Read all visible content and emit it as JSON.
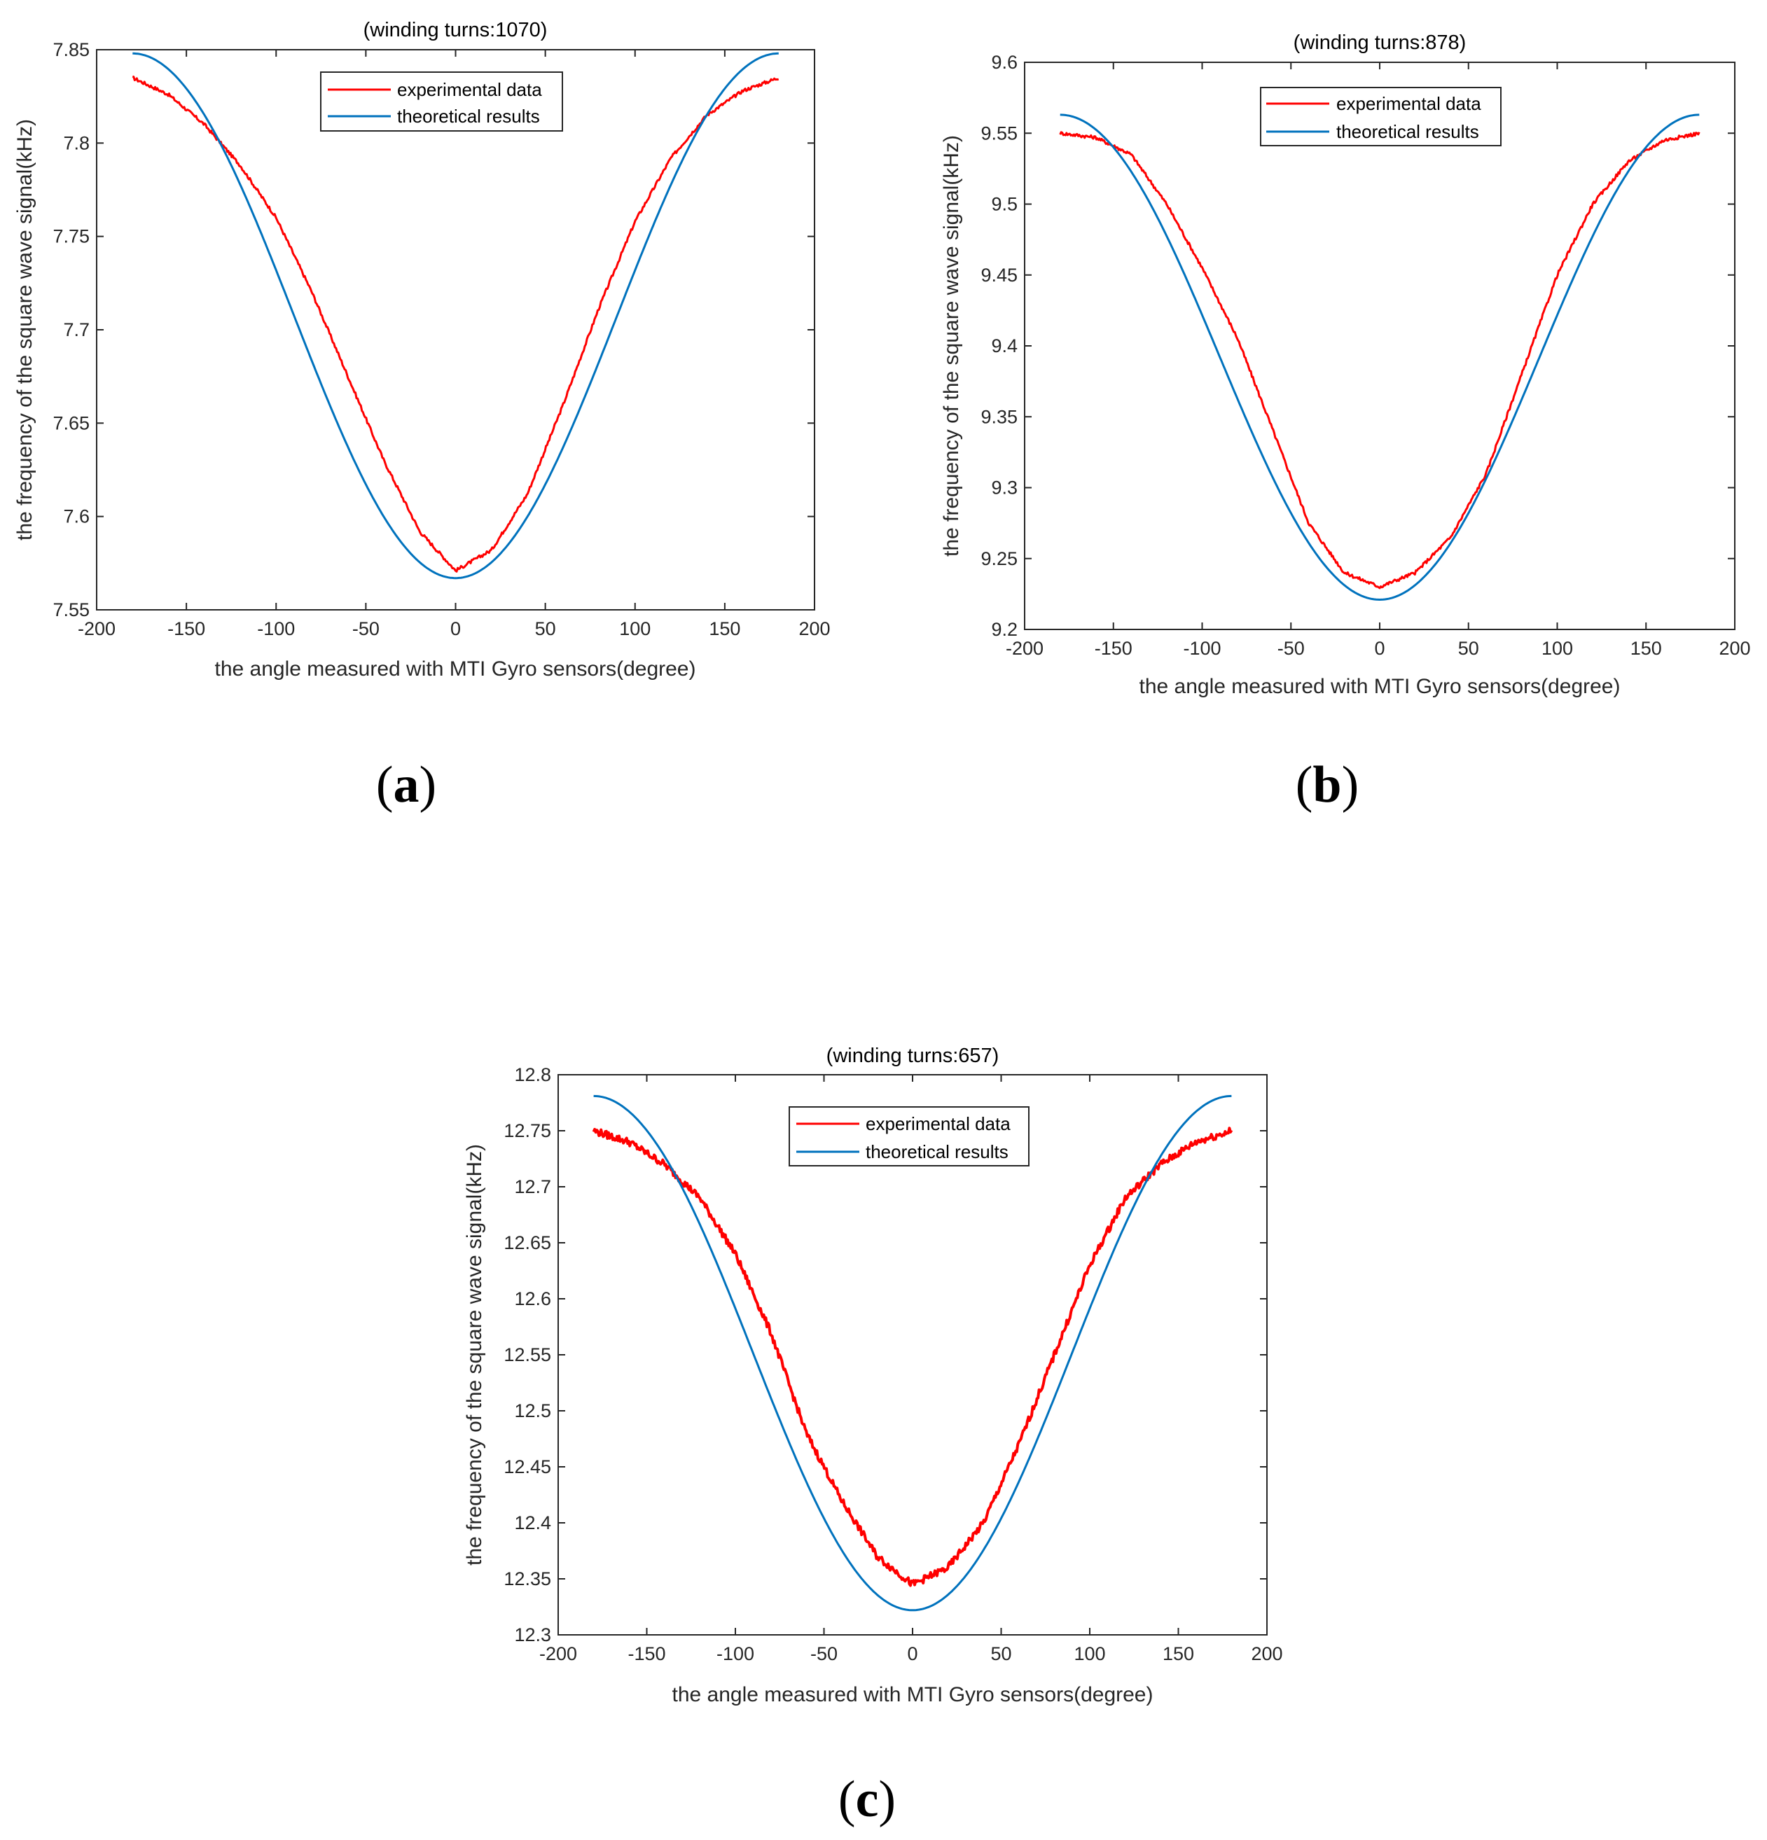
{
  "figure": {
    "panels": [
      {
        "id": "a",
        "caption_open": "(",
        "caption_letter": "a",
        "caption_close": ")"
      },
      {
        "id": "b",
        "caption_open": "(",
        "caption_letter": "b",
        "caption_close": ")"
      },
      {
        "id": "c",
        "caption_open": "(",
        "caption_letter": "c",
        "caption_close": ")"
      }
    ]
  },
  "colors": {
    "experimental": "#ff0000",
    "theoretical": "#0072bd",
    "axis": "#262626"
  },
  "chart_data": [
    {
      "type": "line",
      "title": "(winding turns:1070)",
      "xlabel": "the angle measured with MTI Gyro sensors(degree)",
      "ylabel": "the frequency of the square wave signal(kHz)",
      "xlim": [
        -200,
        200
      ],
      "ylim": [
        7.55,
        7.85
      ],
      "xticks": [
        -200,
        -150,
        -100,
        -50,
        0,
        50,
        100,
        150,
        200
      ],
      "yticks": [
        7.55,
        7.6,
        7.65,
        7.7,
        7.75,
        7.8,
        7.85
      ],
      "legend_position": "top-center",
      "series": [
        {
          "name": "experimental data",
          "color": "#ff0000",
          "x": [
            -180,
            -160,
            -140,
            -120,
            -100,
            -80,
            -60,
            -40,
            -20,
            0,
            20,
            40,
            60,
            80,
            100,
            120,
            140,
            160,
            180
          ],
          "y": [
            7.835,
            7.826,
            7.81,
            7.788,
            7.76,
            7.72,
            7.675,
            7.63,
            7.592,
            7.571,
            7.582,
            7.612,
            7.66,
            7.712,
            7.758,
            7.792,
            7.815,
            7.828,
            7.835
          ]
        },
        {
          "name": "theoretical results",
          "color": "#0072bd",
          "model": "cosine",
          "x": [
            -180,
            -150,
            -120,
            -90,
            -60,
            -30,
            0,
            30,
            60,
            90,
            120,
            150,
            180
          ],
          "y": [
            7.848,
            7.829,
            7.778,
            7.707,
            7.637,
            7.585,
            7.567,
            7.585,
            7.637,
            7.707,
            7.778,
            7.829,
            7.848
          ]
        }
      ]
    },
    {
      "type": "line",
      "title": "(winding turns:878)",
      "xlabel": "the angle measured with MTI Gyro sensors(degree)",
      "ylabel": "the frequency of the square wave signal(kHz)",
      "xlim": [
        -200,
        200
      ],
      "ylim": [
        9.2,
        9.6
      ],
      "xticks": [
        -200,
        -150,
        -100,
        -50,
        0,
        50,
        100,
        150,
        200
      ],
      "yticks": [
        9.2,
        9.25,
        9.3,
        9.35,
        9.4,
        9.45,
        9.5,
        9.55,
        9.6
      ],
      "legend_position": "top-center",
      "series": [
        {
          "name": "experimental data",
          "color": "#ff0000",
          "x": [
            -180,
            -160,
            -140,
            -120,
            -100,
            -80,
            -60,
            -40,
            -20,
            0,
            20,
            40,
            60,
            80,
            100,
            120,
            140,
            160,
            180
          ],
          "y": [
            9.55,
            9.547,
            9.535,
            9.5,
            9.455,
            9.405,
            9.34,
            9.275,
            9.24,
            9.23,
            9.24,
            9.265,
            9.31,
            9.38,
            9.45,
            9.5,
            9.53,
            9.545,
            9.55
          ]
        },
        {
          "name": "theoretical results",
          "color": "#0072bd",
          "model": "cosine",
          "x": [
            -180,
            -150,
            -120,
            -90,
            -60,
            -30,
            0,
            30,
            60,
            90,
            120,
            150,
            180
          ],
          "y": [
            9.563,
            9.539,
            9.482,
            9.392,
            9.301,
            9.233,
            9.221,
            9.233,
            9.301,
            9.392,
            9.482,
            9.539,
            9.563
          ]
        }
      ]
    },
    {
      "type": "line",
      "title": "(winding turns:657)",
      "xlabel": "the angle measured with MTI Gyro sensors(degree)",
      "ylabel": "the frequency of the square wave signal(kHz)",
      "xlim": [
        -200,
        200
      ],
      "ylim": [
        12.3,
        12.8
      ],
      "xticks": [
        -200,
        -150,
        -100,
        -50,
        0,
        50,
        100,
        150,
        200
      ],
      "yticks": [
        12.3,
        12.35,
        12.4,
        12.45,
        12.5,
        12.55,
        12.6,
        12.65,
        12.7,
        12.75,
        12.8
      ],
      "legend_position": "top-center",
      "series": [
        {
          "name": "experimental data",
          "color": "#ff0000",
          "x": [
            -180,
            -160,
            -140,
            -120,
            -100,
            -80,
            -60,
            -40,
            -20,
            0,
            20,
            40,
            60,
            80,
            100,
            120,
            140,
            160,
            180
          ],
          "y": [
            12.75,
            12.74,
            12.72,
            12.69,
            12.64,
            12.57,
            12.48,
            12.42,
            12.37,
            12.345,
            12.36,
            12.4,
            12.47,
            12.55,
            12.63,
            12.69,
            12.72,
            12.74,
            12.75
          ]
        },
        {
          "name": "theoretical results",
          "color": "#0072bd",
          "model": "cosine",
          "x": [
            -180,
            -150,
            -120,
            -90,
            -60,
            -30,
            0,
            30,
            60,
            90,
            120,
            150,
            180
          ],
          "y": [
            12.781,
            12.75,
            12.666,
            12.551,
            12.437,
            12.353,
            12.322,
            12.353,
            12.437,
            12.551,
            12.666,
            12.75,
            12.781
          ]
        }
      ]
    }
  ]
}
